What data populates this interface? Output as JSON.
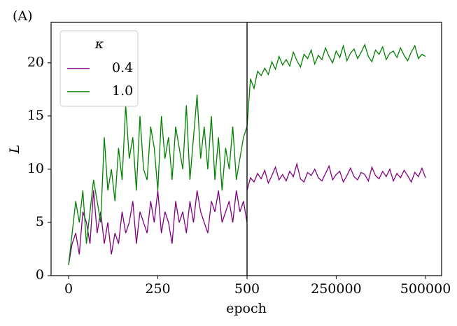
{
  "chart_data": [
    {
      "type": "line",
      "title": "(A)",
      "xlabel": "epoch",
      "ylabel": "L",
      "legend_title": "κ",
      "legend": "upper left",
      "x": [
        0,
        10,
        20,
        30,
        40,
        50,
        60,
        70,
        80,
        90,
        100,
        110,
        120,
        130,
        140,
        150,
        160,
        170,
        180,
        190,
        200,
        210,
        220,
        230,
        240,
        250,
        260,
        270,
        280,
        290,
        300,
        310,
        320,
        330,
        340,
        350,
        360,
        370,
        380,
        390,
        400,
        410,
        420,
        430,
        440,
        450,
        460,
        470,
        480,
        490,
        500
      ],
      "series": [
        {
          "name": "0.4",
          "color": "#800080",
          "values": [
            1,
            3,
            4,
            2,
            6,
            5,
            3,
            8,
            4,
            6,
            3,
            5,
            2,
            4,
            3,
            6,
            4,
            5,
            7,
            3,
            6,
            5,
            4,
            7,
            5,
            8,
            4,
            6,
            5,
            3,
            7,
            5,
            6,
            4,
            7,
            5,
            8,
            6,
            5,
            4,
            7,
            6,
            8,
            5,
            6,
            7,
            5,
            8,
            6,
            7,
            5
          ]
        },
        {
          "name": "1.0",
          "color": "#008000",
          "values": [
            1,
            4,
            7,
            5,
            8,
            3,
            6,
            9,
            7,
            5,
            13,
            8,
            10,
            7,
            12,
            9,
            16,
            11,
            13,
            8,
            15,
            10,
            9,
            14,
            12,
            8,
            15,
            11,
            13,
            9,
            14,
            12,
            10,
            16,
            9,
            13,
            17,
            11,
            14,
            10,
            15,
            9,
            13,
            8,
            12,
            10,
            14,
            9,
            11,
            13,
            14
          ]
        }
      ],
      "xlim": [
        -49,
        500
      ],
      "xticks": [
        0,
        250
      ],
      "ylim": [
        0,
        23.8
      ],
      "yticks": [
        0,
        5,
        10,
        15,
        20
      ]
    },
    {
      "type": "line",
      "x": [
        500,
        10000,
        20000,
        30000,
        40000,
        50000,
        60000,
        70000,
        80000,
        90000,
        100000,
        110000,
        120000,
        130000,
        140000,
        150000,
        160000,
        170000,
        180000,
        190000,
        200000,
        210000,
        220000,
        230000,
        240000,
        250000,
        260000,
        270000,
        280000,
        290000,
        300000,
        310000,
        320000,
        330000,
        340000,
        350000,
        360000,
        370000,
        380000,
        390000,
        400000,
        410000,
        420000,
        430000,
        440000,
        450000,
        460000,
        470000,
        480000,
        490000,
        500000
      ],
      "series": [
        {
          "color": "#800080",
          "values": [
            8,
            9.2,
            8.8,
            9.6,
            9.1,
            9.9,
            8.7,
            9.4,
            10.2,
            9.0,
            9.5,
            8.9,
            9.8,
            9.3,
            10.5,
            9.1,
            8.8,
            9.7,
            9.4,
            10.0,
            9.2,
            8.9,
            9.6,
            10.3,
            9.0,
            9.5,
            9.8,
            8.8,
            9.4,
            10.1,
            9.3,
            9.0,
            9.7,
            9.5,
            8.9,
            10.2,
            9.4,
            9.1,
            9.8,
            9.3,
            10.0,
            8.9,
            9.6,
            9.2,
            9.9,
            9.4,
            8.8,
            9.7,
            9.3,
            10.1,
            9.2
          ]
        },
        {
          "color": "#008000",
          "values": [
            14,
            18.5,
            17.6,
            19.2,
            18.8,
            19.5,
            18.9,
            20.1,
            19.4,
            20.6,
            19.8,
            20.3,
            19.7,
            21.0,
            20.2,
            19.6,
            20.8,
            20.4,
            21.2,
            19.9,
            20.7,
            20.3,
            21.4,
            20.6,
            20.0,
            21.1,
            20.5,
            21.6,
            20.2,
            20.9,
            21.3,
            20.4,
            21.0,
            21.7,
            20.6,
            20.1,
            21.2,
            20.8,
            21.5,
            20.3,
            20.9,
            21.1,
            20.5,
            21.4,
            20.7,
            20.2,
            21.0,
            21.6,
            20.4,
            20.8,
            20.6
          ]
        }
      ],
      "xlim": [
        500,
        545000
      ],
      "xticks": [
        500,
        250000,
        500000
      ],
      "ylim": [
        0,
        23.8
      ]
    }
  ]
}
